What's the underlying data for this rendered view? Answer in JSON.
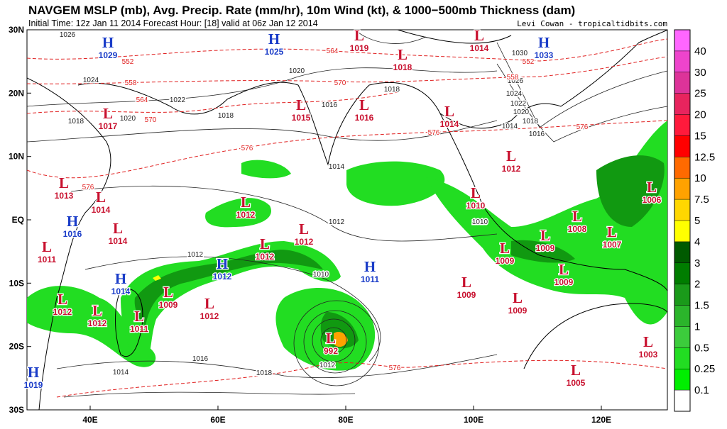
{
  "header": {
    "title": "NAVGEM MSLP (mb), Avg. Precip. Rate (mm/hr), 10m Wind (kt), & 1000−500mb Thickness (dam)",
    "subtitle": "Initial Time: 12z Jan 11 2014 Forecast Hour: [18] valid at 06z Jan 12 2014",
    "credit": "Levi Cowan - tropicaltidbits.com"
  },
  "axes": {
    "lat_labels": [
      "30N",
      "20N",
      "10N",
      "EQ",
      "10S",
      "20S",
      "30S"
    ],
    "lon_labels": [
      "40E",
      "60E",
      "80E",
      "100E",
      "120E"
    ]
  },
  "center_colors": {
    "H": "#1a3cc8",
    "L": "#c8102e"
  },
  "centers": [
    {
      "kind": "H",
      "value": 1029
    },
    {
      "kind": "H",
      "value": 1025
    },
    {
      "kind": "L",
      "value": 1019
    },
    {
      "kind": "L",
      "value": 1014
    },
    {
      "kind": "H",
      "value": 1033
    },
    {
      "kind": "L",
      "value": 1018
    },
    {
      "kind": "L",
      "value": 1015
    },
    {
      "kind": "L",
      "value": 1016
    },
    {
      "kind": "L",
      "value": 1014
    },
    {
      "kind": "L",
      "value": 1017
    },
    {
      "kind": "L",
      "value": 1012
    },
    {
      "kind": "L",
      "value": 1013
    },
    {
      "kind": "L",
      "value": 1014
    },
    {
      "kind": "L",
      "value": 1012
    },
    {
      "kind": "L",
      "value": 1010
    },
    {
      "kind": "L",
      "value": 1006
    },
    {
      "kind": "H",
      "value": 1016
    },
    {
      "kind": "L",
      "value": 1014
    },
    {
      "kind": "L",
      "value": 1012
    },
    {
      "kind": "L",
      "value": 1008
    },
    {
      "kind": "L",
      "value": 1009
    },
    {
      "kind": "L",
      "value": 1007
    },
    {
      "kind": "L",
      "value": 1011
    },
    {
      "kind": "L",
      "value": 1012
    },
    {
      "kind": "L",
      "value": 1009
    },
    {
      "kind": "H",
      "value": 1012
    },
    {
      "kind": "H",
      "value": 1011
    },
    {
      "kind": "L",
      "value": 1009
    },
    {
      "kind": "H",
      "value": 1014
    },
    {
      "kind": "L",
      "value": 1009
    },
    {
      "kind": "L",
      "value": 1009
    },
    {
      "kind": "L",
      "value": 1012
    },
    {
      "kind": "L",
      "value": 1012
    },
    {
      "kind": "L",
      "value": 1009
    },
    {
      "kind": "L",
      "value": 1012
    },
    {
      "kind": "L",
      "value": 1011
    },
    {
      "kind": "L",
      "value": 992
    },
    {
      "kind": "L",
      "value": 1003
    },
    {
      "kind": "L",
      "value": 1005
    },
    {
      "kind": "H",
      "value": 1019
    }
  ],
  "isobar_color": "#222222",
  "isobar_labels": [
    1026,
    1024,
    1022,
    1018,
    1020,
    1016,
    1018,
    1014,
    1012,
    1012,
    1010,
    1016,
    1018,
    1014,
    1012,
    1018,
    1020,
    1030,
    1026,
    1024,
    1022,
    1020,
    1018,
    1014,
    1016,
    1010
  ],
  "thickness_color": "#e02020",
  "thickness_labels": [
    552,
    558,
    564,
    570,
    576,
    576,
    570,
    564,
    576,
    576,
    552,
    558,
    576
  ],
  "colorbar": {
    "levels": [
      40,
      30,
      25,
      20,
      15,
      12.5,
      10,
      7.5,
      5,
      4,
      3,
      2,
      1.5,
      1,
      0.5,
      0.25,
      0.1
    ],
    "colors": [
      "#ff66ff",
      "#ee44cc",
      "#dd3399",
      "#e8245e",
      "#ff1a3c",
      "#ff0000",
      "#ff6a00",
      "#ffa200",
      "#ffd700",
      "#ffff00",
      "#005a00",
      "#007d00",
      "#1a9a1a",
      "#2bb52b",
      "#3ccc3c",
      "#22dd22",
      "#00ee00",
      "#ffffff"
    ]
  }
}
